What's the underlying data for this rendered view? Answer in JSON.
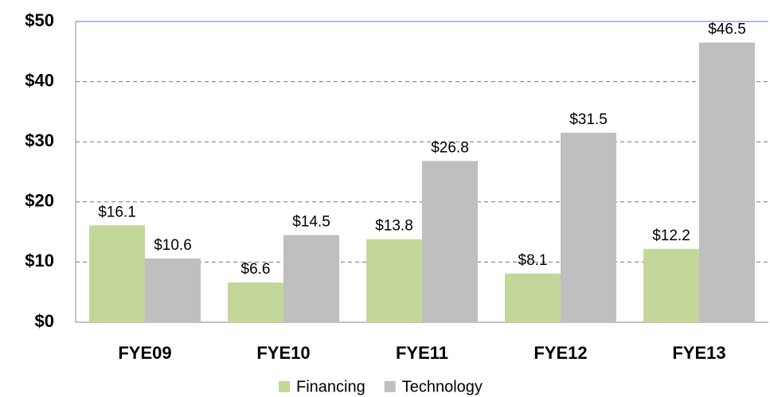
{
  "chart_data": {
    "type": "bar",
    "categories": [
      "FYE09",
      "FYE10",
      "FYE11",
      "FYE12",
      "FYE13"
    ],
    "series": [
      {
        "name": "Financing",
        "color": "#c4d79b",
        "values": [
          16.1,
          6.6,
          13.8,
          8.1,
          12.2
        ],
        "value_labels": [
          "$16.1",
          "$6.6",
          "$13.8",
          "$8.1",
          "$12.2"
        ]
      },
      {
        "name": "Technology",
        "color": "#bfbfbf",
        "values": [
          10.6,
          14.5,
          26.8,
          31.5,
          46.5
        ],
        "value_labels": [
          "$10.6",
          "$14.5",
          "$26.8",
          "$31.5",
          "$46.5"
        ]
      }
    ],
    "ylim": [
      0,
      50
    ],
    "yticks": [
      {
        "value": 0,
        "label": "$0"
      },
      {
        "value": 10,
        "label": "$10"
      },
      {
        "value": 20,
        "label": "$20"
      },
      {
        "value": 30,
        "label": "$30"
      },
      {
        "value": 40,
        "label": "$40"
      },
      {
        "value": 50,
        "label": "$50"
      }
    ],
    "grid": true,
    "legend": "bottom"
  }
}
